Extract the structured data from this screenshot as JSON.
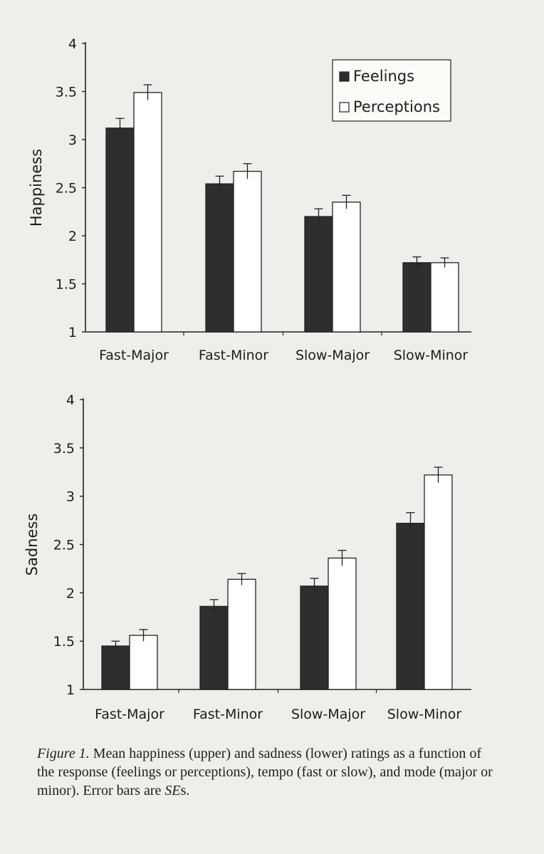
{
  "chart_data": [
    {
      "type": "bar",
      "ylabel": "Happiness",
      "ylim": [
        1,
        4
      ],
      "yticks": [
        "1",
        "1.5",
        "2",
        "2.5",
        "3",
        "3.5",
        "4"
      ],
      "categories": [
        "Fast-Major",
        "Fast-Minor",
        "Slow-Major",
        "Slow-Minor"
      ],
      "series": [
        {
          "name": "Feelings",
          "values": [
            3.12,
            2.54,
            2.2,
            1.72
          ],
          "errors": [
            0.1,
            0.08,
            0.08,
            0.06
          ],
          "color": "#2e2e2e"
        },
        {
          "name": "Perceptions",
          "values": [
            3.49,
            2.67,
            2.35,
            1.72
          ],
          "errors": [
            0.08,
            0.08,
            0.07,
            0.05
          ],
          "color": "#ffffff"
        }
      ],
      "legend": "top-right"
    },
    {
      "type": "bar",
      "ylabel": "Sadness",
      "ylim": [
        1,
        4
      ],
      "yticks": [
        "1",
        "1.5",
        "2",
        "2.5",
        "3",
        "3.5",
        "4"
      ],
      "categories": [
        "Fast-Major",
        "Fast-Minor",
        "Slow-Major",
        "Slow-Minor"
      ],
      "series": [
        {
          "name": "Feelings",
          "values": [
            1.45,
            1.86,
            2.07,
            2.72
          ],
          "errors": [
            0.05,
            0.07,
            0.08,
            0.11
          ],
          "color": "#2e2e2e"
        },
        {
          "name": "Perceptions",
          "values": [
            1.56,
            2.14,
            2.36,
            3.22
          ],
          "errors": [
            0.06,
            0.06,
            0.08,
            0.08
          ],
          "color": "#ffffff"
        }
      ]
    }
  ],
  "caption": {
    "figure_label": "Figure 1.",
    "text_1": " Mean happiness (upper) and sadness (lower) ratings as a function of the response (feelings or perceptions), tempo (fast or slow), and mode (major or minor). Error bars are ",
    "ses": "SE",
    "text_2": "s."
  }
}
